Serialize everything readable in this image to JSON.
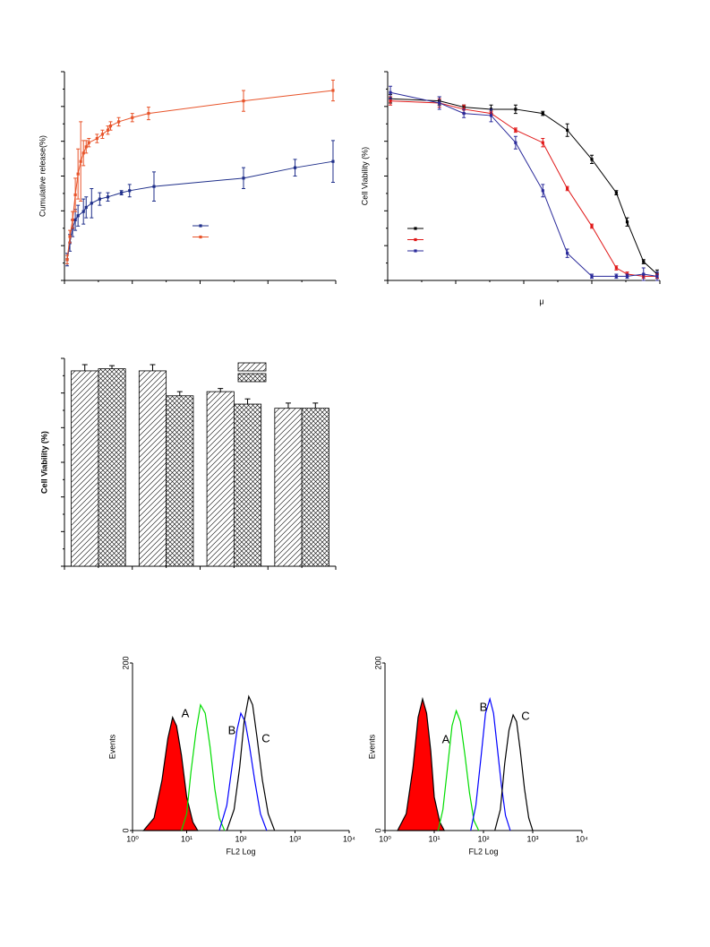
{
  "chart_data": [
    {
      "type": "line",
      "ylabel": "Cumulative release(%)",
      "xlim": [
        0,
        100
      ],
      "ylim": [
        0,
        100
      ],
      "series": [
        {
          "color": "#1f2f8a",
          "x": [
            1,
            2,
            3,
            4,
            5,
            7,
            8,
            10,
            13,
            16,
            21,
            24,
            33,
            66,
            85,
            99
          ],
          "values": [
            10,
            18,
            25,
            29,
            31,
            33,
            35,
            37,
            39,
            40,
            42,
            43,
            45,
            49,
            54,
            57
          ],
          "errors": [
            3,
            4,
            4,
            5,
            5,
            6,
            5,
            7,
            3,
            2,
            1,
            3,
            7,
            5,
            4,
            10
          ]
        },
        {
          "color": "#e8542a",
          "x": [
            1,
            2,
            3,
            4,
            5,
            6,
            7,
            8,
            9,
            12,
            14,
            16,
            17,
            20,
            25,
            31,
            66,
            99
          ],
          "values": [
            10,
            21,
            29,
            41,
            51,
            57,
            61,
            64,
            66,
            68,
            70,
            72,
            74,
            76,
            78,
            80,
            86,
            91
          ],
          "errors": [
            2,
            3,
            4,
            8,
            12,
            19,
            6,
            3,
            2,
            2,
            2,
            2,
            2,
            2,
            2,
            3,
            5,
            5
          ]
        }
      ]
    },
    {
      "type": "line",
      "ylabel": "Cell Viability (%)",
      "xlabel": "μ",
      "xlim": [
        0,
        100
      ],
      "ylim": [
        0,
        100
      ],
      "series": [
        {
          "color": "#000000",
          "x": [
            1,
            19,
            28,
            38,
            47,
            57,
            66,
            75,
            84,
            88,
            94,
            99
          ],
          "values": [
            87,
            86,
            83,
            82,
            82,
            80,
            72,
            58,
            42,
            28,
            9,
            3
          ],
          "errors": [
            2,
            2,
            1,
            2,
            2,
            1,
            3,
            2,
            1,
            2,
            1,
            2
          ]
        },
        {
          "color": "#e01818",
          "x": [
            1,
            19,
            28,
            38,
            47,
            57,
            66,
            75,
            84,
            88,
            94,
            99
          ],
          "values": [
            86,
            85,
            82,
            80,
            72,
            66,
            44,
            26,
            6,
            3,
            2,
            2
          ],
          "errors": [
            2,
            2,
            2,
            1,
            1,
            2,
            1,
            1,
            1,
            1,
            1,
            1
          ]
        },
        {
          "color": "#2a2a9a",
          "x": [
            1,
            19,
            28,
            38,
            47,
            57,
            66,
            75,
            84,
            88,
            94,
            99
          ],
          "values": [
            90,
            85,
            80,
            79,
            66,
            43,
            13,
            2,
            2,
            2,
            3,
            2
          ],
          "errors": [
            3,
            3,
            2,
            3,
            3,
            3,
            2,
            1,
            1,
            1,
            3,
            2
          ]
        }
      ]
    },
    {
      "type": "bar",
      "ylabel": "Cell Viability (%)",
      "ylim": [
        0,
        100
      ],
      "categories": [
        null,
        null,
        null,
        null
      ],
      "series": [
        {
          "color": "#000000",
          "pattern": "diagonal",
          "values": [
            94,
            94,
            84,
            76
          ],
          "errors": [
            3,
            3,
            1.5,
            2.5
          ]
        },
        {
          "color": "#000000",
          "pattern": "crosshatch",
          "values": [
            95,
            82,
            78,
            76
          ],
          "errors": [
            1.5,
            2,
            2.5,
            2.5
          ]
        }
      ]
    },
    {
      "type": "area",
      "ylabel": "Events",
      "xlabel": "FL2 Log",
      "xscale": "log",
      "xlim": [
        1,
        10000
      ],
      "ylim": [
        0,
        200
      ],
      "yticks": [
        0,
        200
      ],
      "xticks": [
        {
          "value": 1,
          "label": "10⁰"
        },
        {
          "value": 10,
          "label": "10¹"
        },
        {
          "value": 100,
          "label": "10²"
        },
        {
          "value": 1000,
          "label": "10³"
        },
        {
          "value": 10000,
          "label": "10⁴"
        }
      ],
      "annotations": [
        "A",
        "B",
        "C"
      ],
      "series": [
        {
          "color": "#ff0000",
          "fill": true,
          "x": [
            1.6,
            2.5,
            3.5,
            4.5,
            5.5,
            6.5,
            8,
            10,
            13,
            16
          ],
          "values": [
            0,
            15,
            60,
            110,
            135,
            125,
            90,
            40,
            10,
            0
          ]
        },
        {
          "color": "#00dd00",
          "fill": false,
          "x": [
            8,
            10,
            12,
            15,
            18,
            22,
            27,
            33,
            40,
            50
          ],
          "values": [
            0,
            20,
            70,
            120,
            150,
            140,
            100,
            50,
            15,
            0
          ]
        },
        {
          "color": "#0000ff",
          "fill": false,
          "x": [
            40,
            55,
            70,
            85,
            100,
            120,
            145,
            180,
            230,
            300
          ],
          "values": [
            0,
            30,
            80,
            120,
            140,
            130,
            100,
            60,
            20,
            0
          ]
        },
        {
          "color": "#000000",
          "fill": false,
          "x": [
            55,
            75,
            95,
            115,
            140,
            165,
            200,
            250,
            320,
            420
          ],
          "values": [
            0,
            25,
            75,
            130,
            160,
            150,
            110,
            60,
            20,
            0
          ]
        }
      ]
    },
    {
      "type": "area",
      "ylabel": "Events",
      "xlabel": "FL2 Log",
      "xscale": "log",
      "xlim": [
        1,
        10000
      ],
      "ylim": [
        0,
        200
      ],
      "yticks": [
        0,
        200
      ],
      "xticks": [
        {
          "value": 1,
          "label": "10⁰"
        },
        {
          "value": 10,
          "label": "10¹"
        },
        {
          "value": 100,
          "label": "10²"
        },
        {
          "value": 1000,
          "label": "10³"
        },
        {
          "value": 10000,
          "label": "10⁴"
        }
      ],
      "annotations": [
        "A",
        "B",
        "C"
      ],
      "series": [
        {
          "color": "#ff0000",
          "fill": true,
          "x": [
            1.8,
            2.7,
            3.7,
            4.7,
            5.8,
            7,
            8.5,
            10,
            13,
            16
          ],
          "values": [
            0,
            20,
            75,
            135,
            157,
            140,
            95,
            40,
            10,
            0
          ]
        },
        {
          "color": "#00dd00",
          "fill": false,
          "x": [
            12,
            15,
            19,
            23,
            28,
            34,
            42,
            52,
            64,
            80
          ],
          "values": [
            0,
            25,
            80,
            125,
            143,
            130,
            90,
            45,
            12,
            0
          ]
        },
        {
          "color": "#0000ff",
          "fill": false,
          "x": [
            55,
            70,
            90,
            110,
            135,
            160,
            190,
            230,
            280,
            350
          ],
          "values": [
            0,
            30,
            90,
            140,
            157,
            140,
            100,
            55,
            18,
            0
          ]
        },
        {
          "color": "#000000",
          "fill": false,
          "x": [
            170,
            220,
            270,
            330,
            400,
            470,
            560,
            680,
            830,
            1000
          ],
          "values": [
            0,
            25,
            80,
            120,
            138,
            130,
            95,
            50,
            15,
            0
          ]
        }
      ]
    }
  ]
}
